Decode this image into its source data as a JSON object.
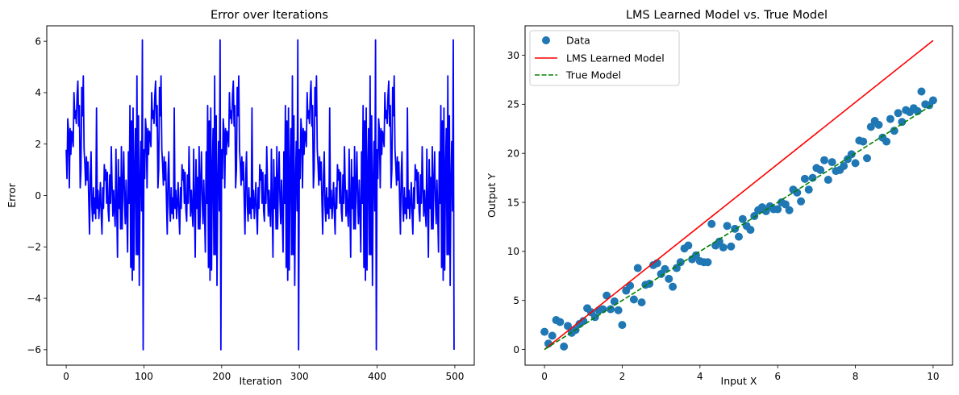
{
  "chart_data": [
    {
      "type": "line",
      "title": "Error over Iterations",
      "xlabel": "Iteration",
      "ylabel": "Error",
      "xlim": [
        -25,
        525
      ],
      "ylim": [
        -6.6,
        6.6
      ],
      "xticks": [
        0,
        100,
        200,
        300,
        400,
        500
      ],
      "yticks": [
        -6,
        -4,
        -2,
        0,
        2,
        4,
        6
      ],
      "grid": false,
      "series": [
        {
          "color": "#0000ff",
          "period": 100,
          "first_cycle": [
            1.78,
            0.66,
            2.98,
            2.5,
            0.3,
            2.6,
            1.6,
            2.5,
            2.3,
            1.9,
            4.0,
            3.0,
            3.3,
            2.8,
            3.9,
            4.45,
            2.7,
            3.5,
            0.3,
            1.0,
            4.2,
            3.1,
            4.65,
            1.8,
            1.2,
            0.4,
            1.5,
            0.6,
            1.3,
            -0.2,
            -1.5,
            0.8,
            1.7,
            -0.4,
            -1.0,
            0.3,
            -0.7,
            -0.1,
            -0.9,
            3.4,
            -0.5,
            0.2,
            -0.9,
            -0.3,
            0.5,
            -0.7,
            -1.5,
            0.3,
            -0.5,
            1.2,
            0.6,
            1.0,
            -0.3,
            0.9,
            -0.6,
            -1.0,
            0.8,
            -0.3,
            1.9,
            0.4,
            -0.8,
            0.2,
            -0.6,
            -1.2,
            1.8,
            -0.4,
            -2.4,
            1.4,
            -0.5,
            0.7,
            -1.3,
            1.9,
            -1.3,
            0.5,
            1.7,
            -0.2,
            -1.1,
            0.6,
            -0.7,
            -2.2,
            1.7,
            -0.3,
            3.5,
            -2.8,
            2.9,
            -3.3,
            3.4,
            -2.9,
            1.0,
            2.6,
            -2.3,
            4.65,
            -2.3,
            3.1,
            -3.5,
            0.5,
            2.1,
            -0.6,
            0.3,
            -6.0
          ]
        }
      ],
      "highlights": [
        [
          98,
          6.05
        ],
        [
          99,
          -6.0
        ],
        [
          198,
          6.05
        ],
        [
          199,
          -6.0
        ],
        [
          298,
          6.05
        ],
        [
          299,
          -6.0
        ],
        [
          398,
          6.05
        ],
        [
          399,
          -6.0
        ],
        [
          498,
          6.05
        ],
        [
          499,
          -6.0
        ]
      ]
    },
    {
      "type": "scatter",
      "title": "LMS Learned Model vs. True Model",
      "xlabel": "Input X",
      "ylabel": "Output Y",
      "xlim": [
        -0.5,
        10.5
      ],
      "ylim": [
        -1.6,
        33.0
      ],
      "xticks": [
        0,
        2,
        4,
        6,
        8,
        10
      ],
      "yticks": [
        0,
        5,
        10,
        15,
        20,
        25,
        30
      ],
      "grid": false,
      "legend_position": "top-left",
      "series": [
        {
          "name": "Data",
          "kind": "scatter",
          "color": "#1f77b4",
          "x": [
            0.0,
            0.1,
            0.2,
            0.3,
            0.4,
            0.5,
            0.6,
            0.7,
            0.8,
            0.9,
            1.0,
            1.1,
            1.2,
            1.3,
            1.4,
            1.5,
            1.6,
            1.7,
            1.8,
            1.9,
            2.0,
            2.1,
            2.2,
            2.3,
            2.4,
            2.5,
            2.6,
            2.7,
            2.8,
            2.9,
            3.0,
            3.1,
            3.2,
            3.3,
            3.4,
            3.5,
            3.6,
            3.7,
            3.8,
            3.9,
            4.0,
            4.1,
            4.2,
            4.3,
            4.4,
            4.5,
            4.6,
            4.7,
            4.8,
            4.9,
            5.0,
            5.1,
            5.2,
            5.3,
            5.4,
            5.5,
            5.6,
            5.7,
            5.8,
            5.9,
            6.0,
            6.1,
            6.2,
            6.3,
            6.4,
            6.5,
            6.6,
            6.7,
            6.8,
            6.9,
            7.0,
            7.1,
            7.2,
            7.3,
            7.4,
            7.5,
            7.6,
            7.7,
            7.8,
            7.9,
            8.0,
            8.1,
            8.2,
            8.3,
            8.4,
            8.5,
            8.6,
            8.7,
            8.8,
            8.9,
            9.0,
            9.1,
            9.2,
            9.3,
            9.4,
            9.5,
            9.6,
            9.7,
            9.8,
            9.9,
            10.0
          ],
          "y": [
            1.8,
            0.6,
            1.4,
            3.0,
            2.8,
            0.3,
            2.4,
            1.7,
            2.0,
            2.6,
            2.9,
            4.2,
            3.8,
            3.3,
            4.0,
            4.1,
            5.5,
            4.1,
            4.9,
            4.0,
            2.5,
            6.0,
            6.5,
            5.1,
            8.3,
            4.8,
            6.6,
            6.7,
            8.6,
            8.8,
            7.7,
            8.2,
            7.2,
            6.4,
            8.3,
            8.9,
            10.3,
            10.6,
            9.2,
            9.6,
            9.0,
            8.9,
            8.9,
            12.8,
            10.6,
            11.0,
            10.4,
            12.6,
            10.5,
            12.3,
            11.5,
            13.3,
            12.6,
            12.2,
            13.6,
            14.2,
            14.5,
            14.1,
            14.6,
            14.3,
            14.3,
            15.0,
            14.8,
            14.2,
            16.3,
            16.0,
            15.1,
            17.4,
            16.3,
            17.5,
            18.5,
            18.3,
            19.3,
            17.3,
            19.1,
            18.2,
            18.3,
            18.7,
            19.4,
            19.9,
            19.0,
            21.3,
            21.2,
            19.5,
            22.7,
            23.3,
            22.9,
            21.6,
            21.2,
            23.5,
            22.3,
            24.1,
            23.2,
            24.4,
            24.2,
            24.6,
            24.3,
            26.3,
            25.0,
            24.9,
            25.4
          ]
        },
        {
          "name": "LMS Learned Model",
          "kind": "line",
          "color": "#ff0000",
          "x": [
            0,
            10
          ],
          "y": [
            0,
            31.5
          ]
        },
        {
          "name": "True Model",
          "kind": "dashed-line",
          "color": "#008000",
          "x": [
            0,
            10
          ],
          "y": [
            0,
            25
          ]
        }
      ]
    }
  ]
}
